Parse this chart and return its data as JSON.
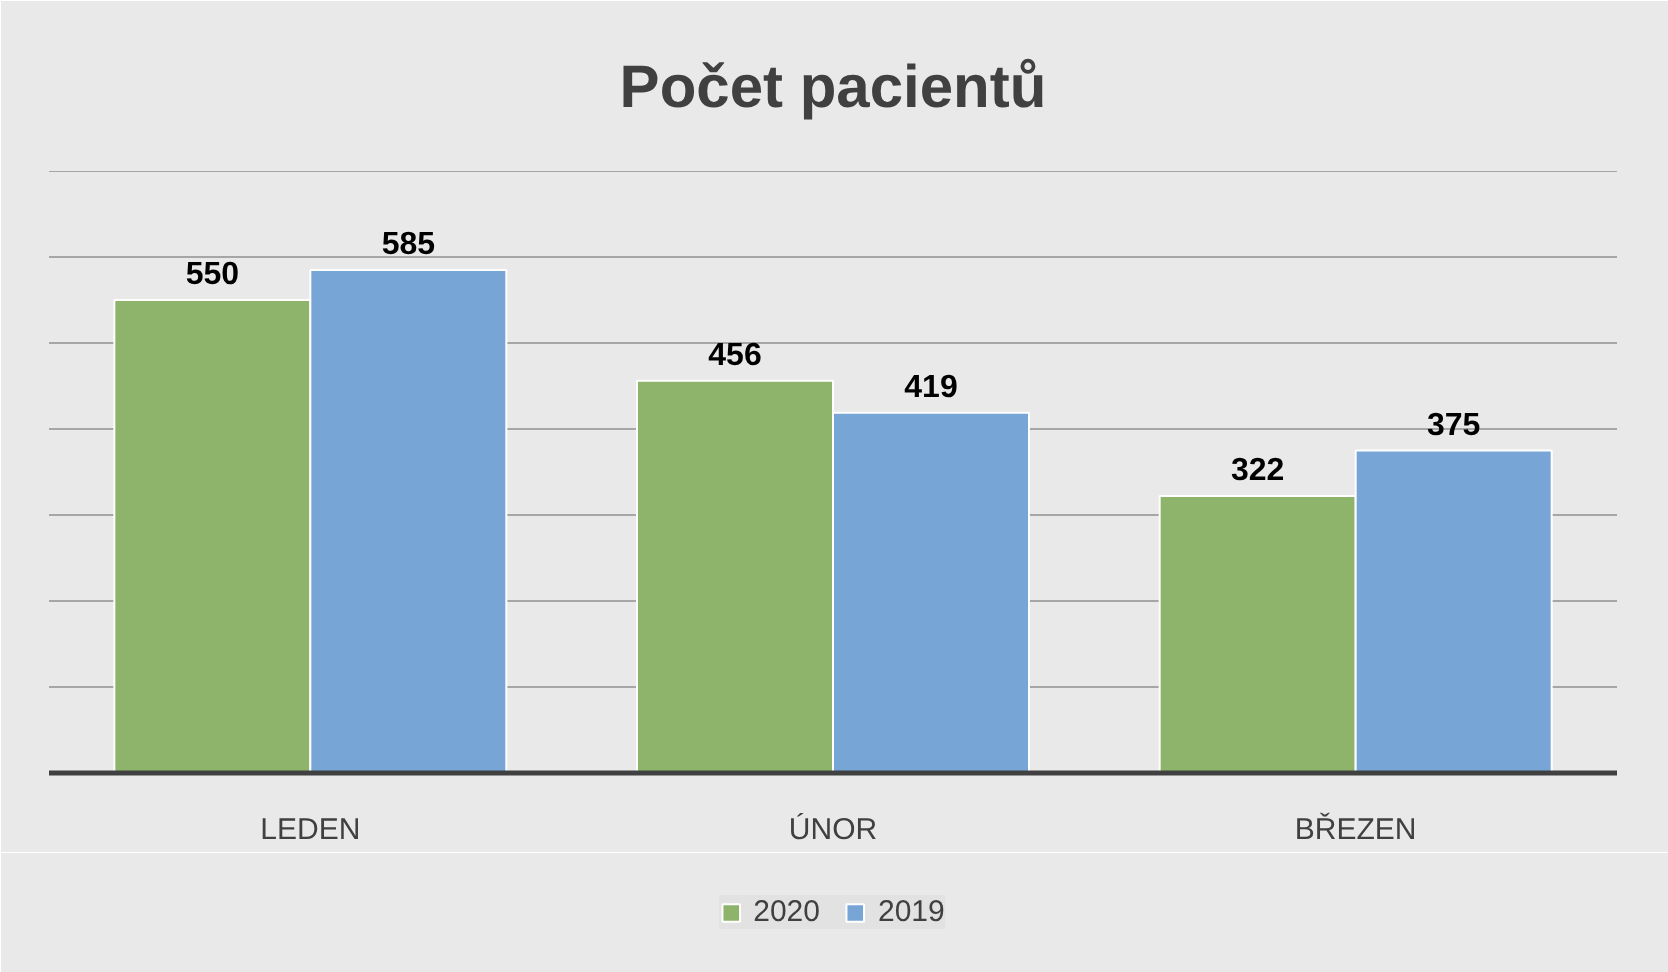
{
  "chart_data": {
    "type": "bar",
    "title": "Počet pacientů",
    "categories": [
      "LEDEN",
      "ÚNOR",
      "BŘEZEN"
    ],
    "series": [
      {
        "name": "2020",
        "color": "#8db46a",
        "values": [
          550,
          456,
          322
        ]
      },
      {
        "name": "2019",
        "color": "#77a6d6",
        "values": [
          585,
          419,
          375
        ]
      }
    ],
    "ylim": [
      0,
      700
    ],
    "yticks": [
      {
        "value": 0,
        "label": null
      },
      {
        "value": 100,
        "label": null
      },
      {
        "value": 200,
        "label": null
      },
      {
        "value": 300,
        "label": null
      },
      {
        "value": 400,
        "label": null
      },
      {
        "value": 500,
        "label": null
      },
      {
        "value": 600,
        "label": null
      },
      {
        "value": 700,
        "label": null
      }
    ],
    "grid": "y",
    "legend": "bottom",
    "data_labels": true,
    "tick_labels": "x"
  }
}
